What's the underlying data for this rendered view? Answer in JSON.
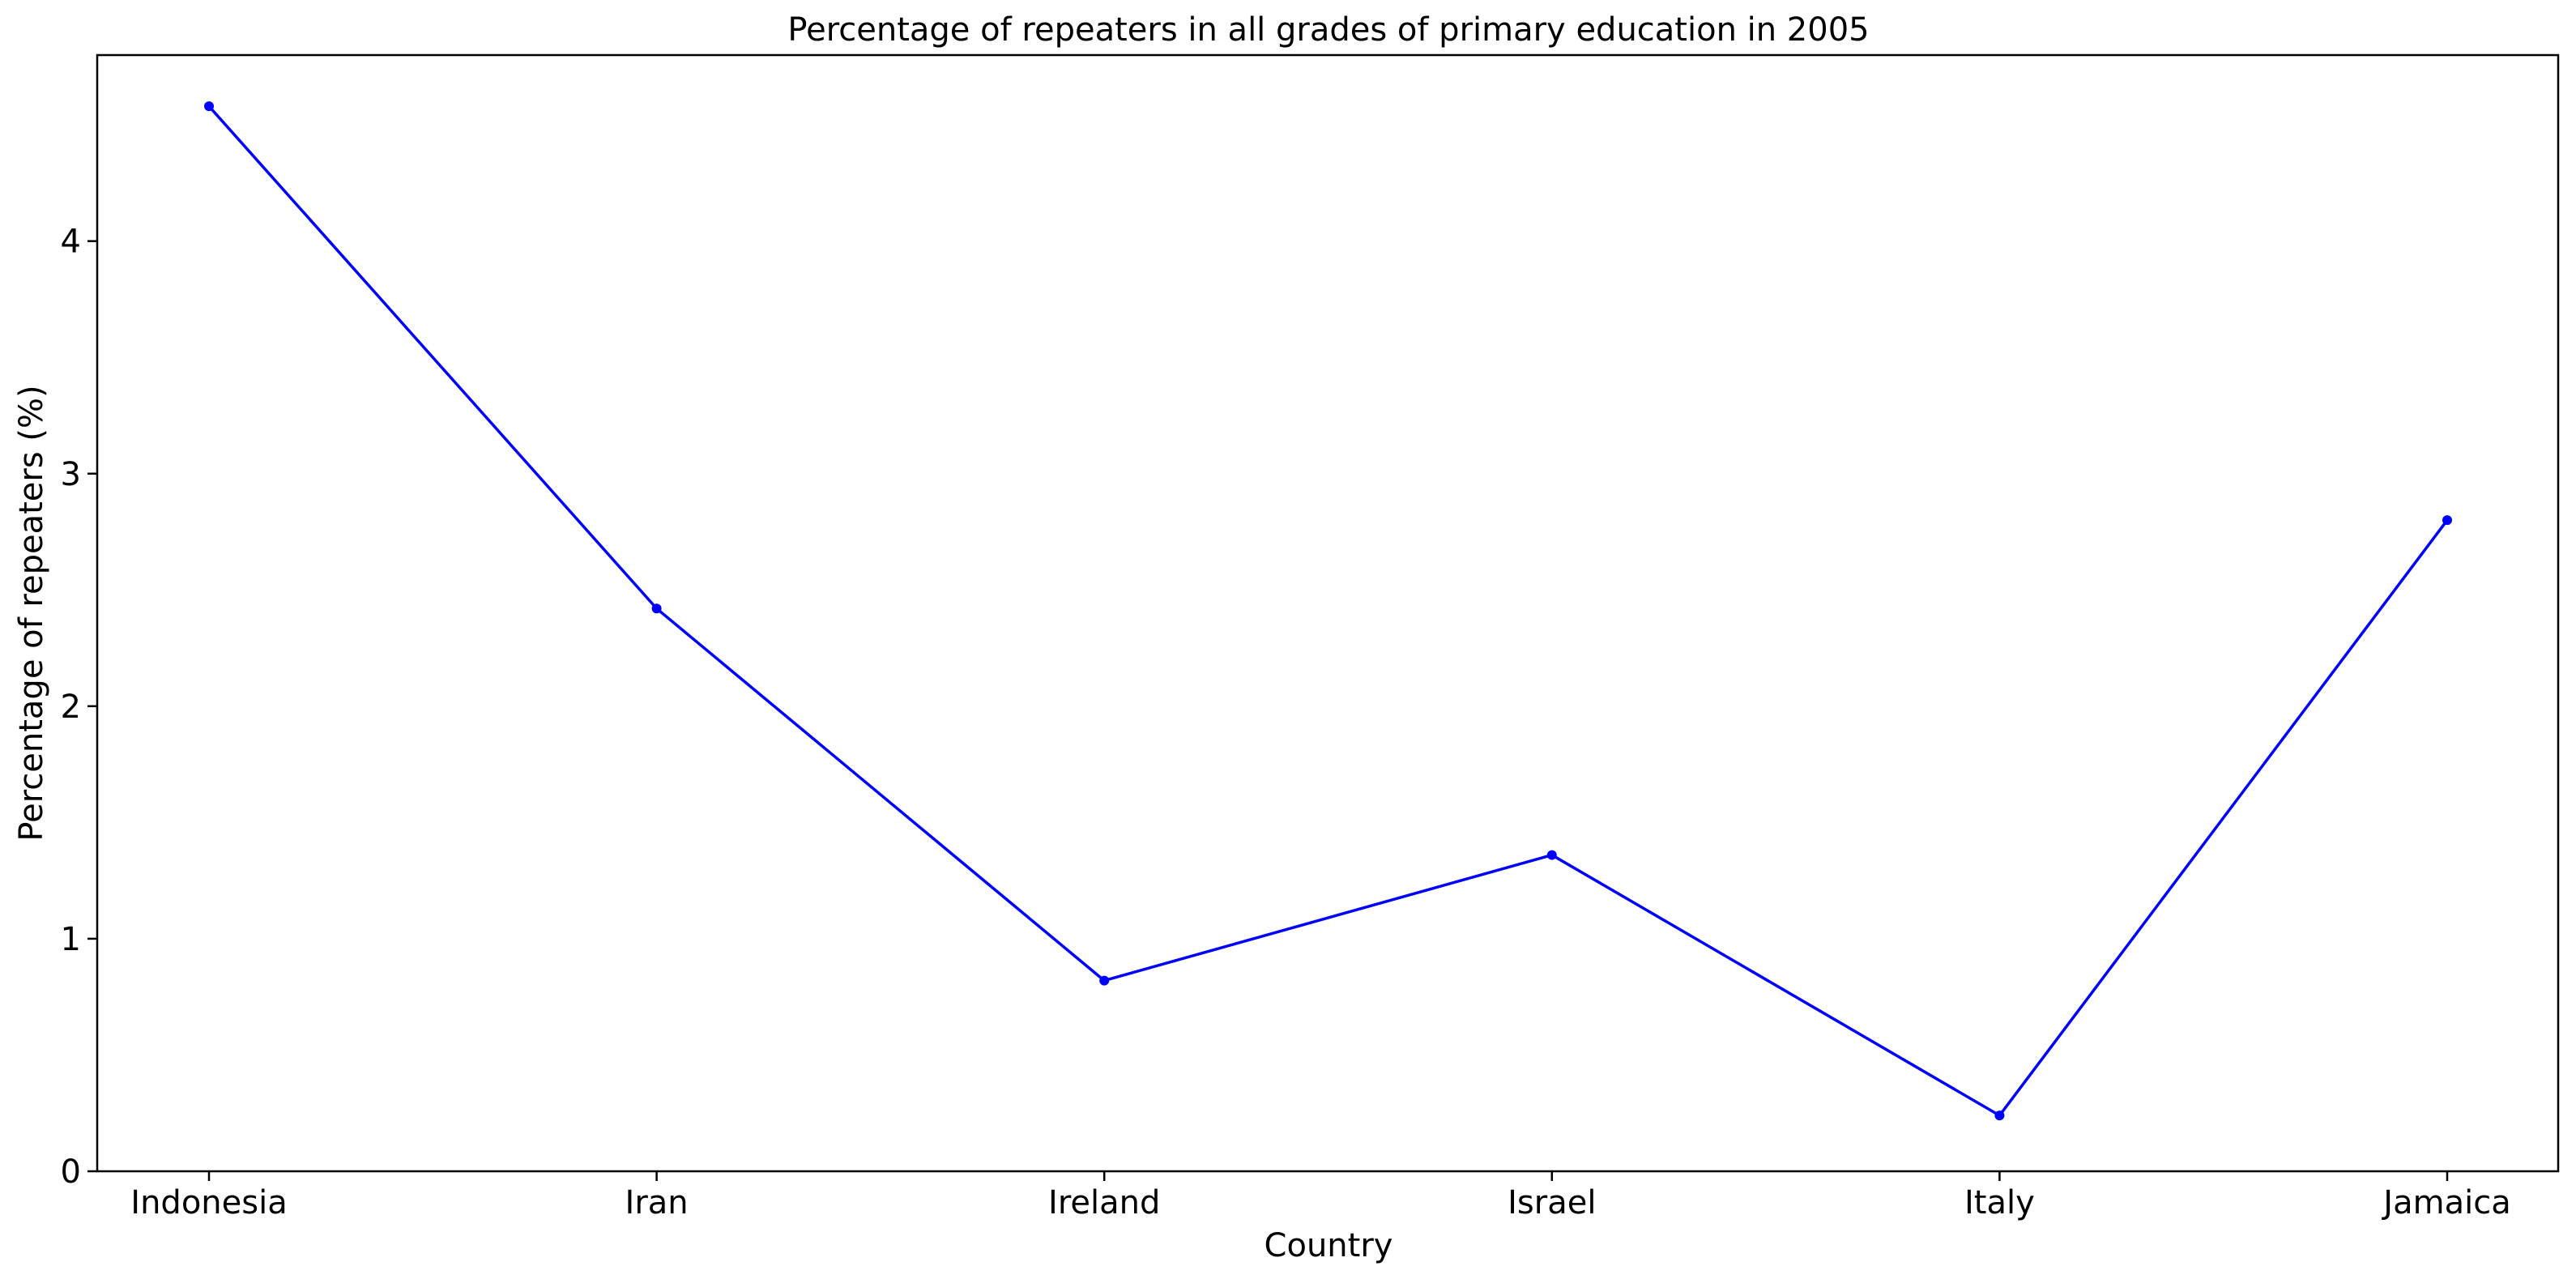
{
  "chart_data": {
    "type": "line",
    "title": "Percentage of repeaters in all grades of primary education in 2005",
    "xlabel": "Country",
    "ylabel": "Percentage of repeaters (%)",
    "categories": [
      "Indonesia",
      "Iran",
      "Ireland",
      "Israel",
      "Italy",
      "Jamaica"
    ],
    "series": [
      {
        "values": [
          4.58,
          2.42,
          0.82,
          1.36,
          0.24,
          2.8
        ],
        "color": "#0000ff",
        "marker": "circle"
      }
    ],
    "ylim": [
      0,
      4.8
    ],
    "yticks": [
      0,
      1,
      2,
      3,
      4
    ],
    "grid": false,
    "legend": "none"
  }
}
